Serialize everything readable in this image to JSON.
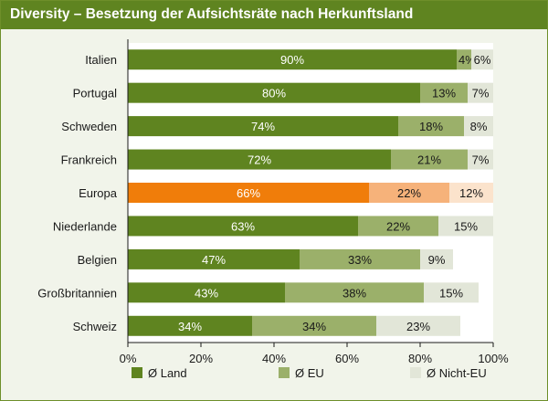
{
  "title": "Diversity – Besetzung der Aufsichtsräte nach Herkunftsland",
  "colors": {
    "land": "#5f8420",
    "eu": "#9bb06a",
    "nicht_eu": "#e2e6d8",
    "highlight_land": "#f07d0a",
    "highlight_eu": "#f6b27a",
    "highlight_nicht_eu": "#fbe3cc",
    "frame": "#6e8f2a",
    "plot_bg": "#ffffff"
  },
  "chart_data": {
    "type": "bar",
    "orientation": "horizontal",
    "stacked": true,
    "percent_stacked": true,
    "categories": [
      "Italien",
      "Portugal",
      "Schweden",
      "Frankreich",
      "Europa",
      "Niederlande",
      "Belgien",
      "Großbritannien",
      "Schweiz"
    ],
    "highlight_category": "Europa",
    "series": [
      {
        "name": "Ø Land",
        "values": [
          90,
          80,
          74,
          72,
          66,
          63,
          47,
          43,
          34
        ],
        "labels": [
          "90%",
          "80%",
          "74%",
          "72%",
          "66%",
          "63%",
          "47%",
          "43%",
          "34%"
        ]
      },
      {
        "name": "Ø EU",
        "values": [
          4,
          13,
          18,
          21,
          22,
          22,
          33,
          38,
          34
        ],
        "labels": [
          "4%",
          "13%",
          "18%",
          "21%",
          "22%",
          "22%",
          "33%",
          "38%",
          "34%"
        ]
      },
      {
        "name": "Ø Nicht-EU",
        "values": [
          6,
          7,
          8,
          7,
          12,
          15,
          9,
          15,
          23
        ],
        "labels": [
          "6%",
          "7%",
          "8%",
          "7%",
          "12%",
          "15%",
          "9%",
          "15%",
          "23%"
        ]
      }
    ],
    "x_ticks": [
      "0%",
      "20%",
      "40%",
      "60%",
      "80%",
      "100%"
    ],
    "xlim": [
      0,
      100
    ],
    "grid": false,
    "legend_position": "bottom"
  }
}
